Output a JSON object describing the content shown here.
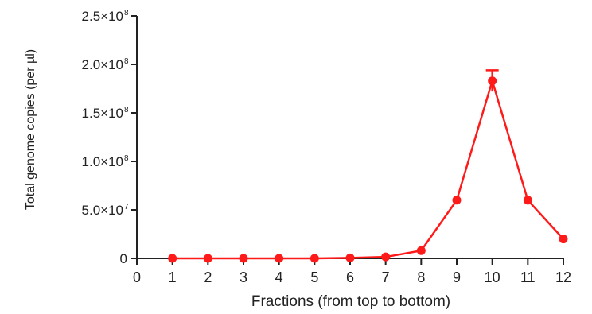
{
  "chart_data": {
    "type": "line",
    "title": "",
    "xlabel": "Fractions (from top to bottom)",
    "ylabel": "Total genome copies (per µl)",
    "xlim": [
      0,
      12
    ],
    "ylim": [
      0,
      250000000
    ],
    "x_ticks": [
      "0",
      "1",
      "2",
      "3",
      "4",
      "5",
      "6",
      "7",
      "8",
      "9",
      "10",
      "11",
      "12"
    ],
    "y_ticks": [
      {
        "value": 0,
        "label": "0",
        "exp": ""
      },
      {
        "value": 50000000,
        "label": "5.0×10",
        "exp": "7"
      },
      {
        "value": 100000000,
        "label": "1.0×10",
        "exp": "8"
      },
      {
        "value": 150000000,
        "label": "1.5×10",
        "exp": "8"
      },
      {
        "value": 200000000,
        "label": "2.0×10",
        "exp": "8"
      },
      {
        "value": 250000000,
        "label": "2.5×10",
        "exp": "8"
      }
    ],
    "series": [
      {
        "color": "#ff1a1a",
        "x": [
          1,
          2,
          3,
          4,
          5,
          6,
          7,
          8,
          9,
          10,
          11,
          12
        ],
        "y": [
          0,
          0,
          0,
          0,
          0,
          500000,
          1500000,
          8000000,
          60000000,
          183000000,
          60000000,
          20000000
        ],
        "err": [
          0,
          0,
          0,
          0,
          0,
          0,
          0,
          0,
          0,
          11000000,
          0,
          0
        ]
      }
    ],
    "grid": false,
    "legend": "none"
  }
}
